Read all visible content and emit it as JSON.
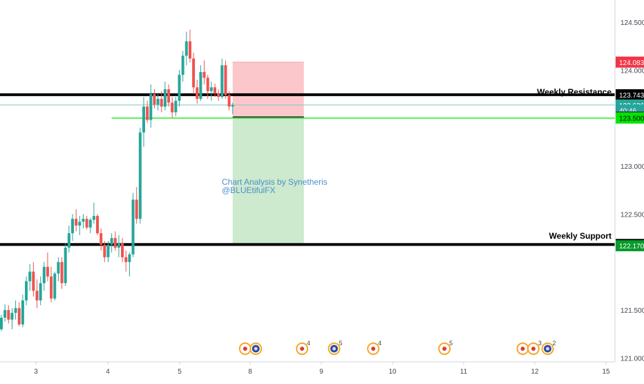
{
  "chart_data": {
    "type": "candlestick",
    "x_ticks": [
      "3",
      "4",
      "5",
      "8",
      "9",
      "10",
      "11",
      "12",
      "15"
    ],
    "y_ticks": [
      "124.500",
      "124.000",
      "123.000",
      "122.500",
      "121.500",
      "121.000"
    ],
    "ylim": [
      120.96,
      124.73
    ],
    "grid": false,
    "colors": {
      "up": "#26a69a",
      "down": "#ef5350",
      "text": "#434651",
      "axis": "#d1d4dc"
    },
    "candles": [
      [
        121.3,
        121.45,
        121.28,
        121.42
      ],
      [
        121.42,
        121.56,
        121.38,
        121.5
      ],
      [
        121.5,
        121.55,
        121.36,
        121.4
      ],
      [
        121.4,
        121.52,
        121.3,
        121.47
      ],
      [
        121.47,
        121.6,
        121.4,
        121.52
      ],
      [
        121.52,
        121.58,
        121.33,
        121.35
      ],
      [
        121.35,
        121.66,
        121.32,
        121.6
      ],
      [
        121.6,
        121.85,
        121.55,
        121.8
      ],
      [
        121.8,
        121.98,
        121.7,
        121.9
      ],
      [
        121.9,
        122.0,
        121.64,
        121.7
      ],
      [
        121.7,
        121.82,
        121.52,
        121.6
      ],
      [
        121.6,
        121.85,
        121.55,
        121.78
      ],
      [
        121.78,
        122.0,
        121.7,
        121.95
      ],
      [
        121.95,
        122.1,
        121.8,
        121.85
      ],
      [
        121.85,
        121.95,
        121.58,
        121.62
      ],
      [
        121.62,
        121.9,
        121.6,
        121.88
      ],
      [
        121.88,
        122.05,
        121.8,
        122.0
      ],
      [
        122.0,
        122.05,
        121.72,
        121.78
      ],
      [
        121.78,
        122.2,
        121.75,
        122.15
      ],
      [
        122.15,
        122.38,
        122.1,
        122.3
      ],
      [
        122.3,
        122.5,
        122.22,
        122.45
      ],
      [
        122.45,
        122.55,
        122.32,
        122.38
      ],
      [
        122.38,
        122.48,
        122.28,
        122.42
      ],
      [
        122.42,
        122.5,
        122.35,
        122.45
      ],
      [
        122.45,
        122.48,
        122.34,
        122.36
      ],
      [
        122.36,
        122.46,
        122.3,
        122.44
      ],
      [
        122.44,
        122.62,
        122.4,
        122.48
      ],
      [
        122.48,
        122.5,
        122.28,
        122.3
      ],
      [
        122.3,
        122.35,
        122.12,
        122.18
      ],
      [
        122.18,
        122.22,
        122.0,
        122.05
      ],
      [
        122.05,
        122.22,
        122.0,
        122.18
      ],
      [
        122.18,
        122.3,
        122.1,
        122.25
      ],
      [
        122.25,
        122.32,
        122.12,
        122.15
      ],
      [
        122.15,
        122.28,
        122.05,
        122.2
      ],
      [
        122.2,
        122.25,
        122.0,
        122.05
      ],
      [
        122.05,
        122.12,
        121.9,
        122.0
      ],
      [
        122.0,
        122.1,
        121.85,
        122.08
      ],
      [
        122.08,
        122.72,
        122.05,
        122.65
      ],
      [
        122.65,
        122.78,
        122.4,
        122.45
      ],
      [
        122.45,
        123.4,
        122.4,
        123.35
      ],
      [
        123.35,
        123.72,
        123.2,
        123.62
      ],
      [
        123.62,
        123.68,
        123.45,
        123.48
      ],
      [
        123.48,
        123.85,
        123.4,
        123.75
      ],
      [
        123.75,
        123.8,
        123.6,
        123.64
      ],
      [
        123.64,
        123.75,
        123.58,
        123.7
      ],
      [
        123.7,
        123.78,
        123.56,
        123.62
      ],
      [
        123.62,
        123.88,
        123.58,
        123.8
      ],
      [
        123.8,
        123.85,
        123.62,
        123.66
      ],
      [
        123.66,
        123.72,
        123.5,
        123.56
      ],
      [
        123.56,
        123.72,
        123.52,
        123.68
      ],
      [
        123.68,
        124.0,
        123.62,
        123.95
      ],
      [
        123.95,
        124.2,
        123.88,
        124.15
      ],
      [
        124.15,
        124.4,
        124.05,
        124.3
      ],
      [
        124.3,
        124.42,
        124.08,
        124.12
      ],
      [
        124.12,
        124.18,
        123.75,
        123.82
      ],
      [
        123.82,
        123.9,
        123.65,
        123.7
      ],
      [
        123.7,
        124.05,
        123.68,
        123.98
      ],
      [
        123.98,
        124.1,
        123.85,
        123.92
      ],
      [
        123.92,
        123.95,
        123.7,
        123.78
      ],
      [
        123.78,
        123.88,
        123.68,
        123.82
      ],
      [
        123.82,
        123.86,
        123.72,
        123.76
      ],
      [
        123.76,
        123.8,
        123.68,
        123.72
      ],
      [
        123.72,
        124.12,
        123.7,
        124.05
      ],
      [
        124.05,
        124.1,
        123.7,
        123.74
      ],
      [
        123.74,
        123.78,
        123.58,
        123.62
      ],
      [
        123.62,
        123.66,
        123.54,
        123.636
      ]
    ],
    "resistance": {
      "value": 123.743,
      "label": "Weekly Resistance"
    },
    "support": {
      "value": 122.183,
      "label": "Weekly Support"
    },
    "position": {
      "entry": 123.512,
      "stop": 124.083,
      "target": 122.17,
      "from_index": 65,
      "to_index": 85
    },
    "green_line": {
      "value": 123.5,
      "from_index": 31
    },
    "last_price_line": 123.636,
    "price_badges": [
      {
        "text": "124.083",
        "value": 124.083,
        "color": "#f23645",
        "text_color": "#ffffff"
      },
      {
        "text": "123.743",
        "value": 123.743,
        "color": "#000000",
        "text_color": "#ffffff"
      },
      {
        "text": "123.636",
        "value": 123.636,
        "color": "#26a69a",
        "text_color": "#ffffff"
      },
      {
        "text": "40:46",
        "value": 123.58,
        "color": "#26a69a",
        "text_color": "#ffffff"
      },
      {
        "text": "123.512",
        "value": 123.512,
        "color": "#434651",
        "text_color": "#ffffff"
      },
      {
        "text": "123.500",
        "value": 123.5,
        "color": "#00e600",
        "text_color": "#000000"
      },
      {
        "text": "122.183",
        "value": 122.183,
        "color": "#000000",
        "text_color": "#ffffff"
      },
      {
        "text": "122.170",
        "value": 122.17,
        "color": "#089a2c",
        "text_color": "#ffffff"
      }
    ],
    "annotation": {
      "line1": "Chart Analysis by Synetheris",
      "line2": "@BLUEtifulFX"
    },
    "events": [
      {
        "x_index": 68.5,
        "type": "flag",
        "count": ""
      },
      {
        "x_index": 71.5,
        "type": "us",
        "count": ""
      },
      {
        "x_index": 84.5,
        "type": "flag",
        "count": "4"
      },
      {
        "x_index": 93.5,
        "type": "us",
        "count": "5"
      },
      {
        "x_index": 104.5,
        "type": "flag",
        "count": "4"
      },
      {
        "x_index": 124.5,
        "type": "flag",
        "count": "5"
      },
      {
        "x_index": 146.5,
        "type": "flag",
        "count": ""
      },
      {
        "x_index": 149.5,
        "type": "flag",
        "count": "3"
      },
      {
        "x_index": 153.5,
        "type": "us",
        "count": "2"
      }
    ]
  }
}
